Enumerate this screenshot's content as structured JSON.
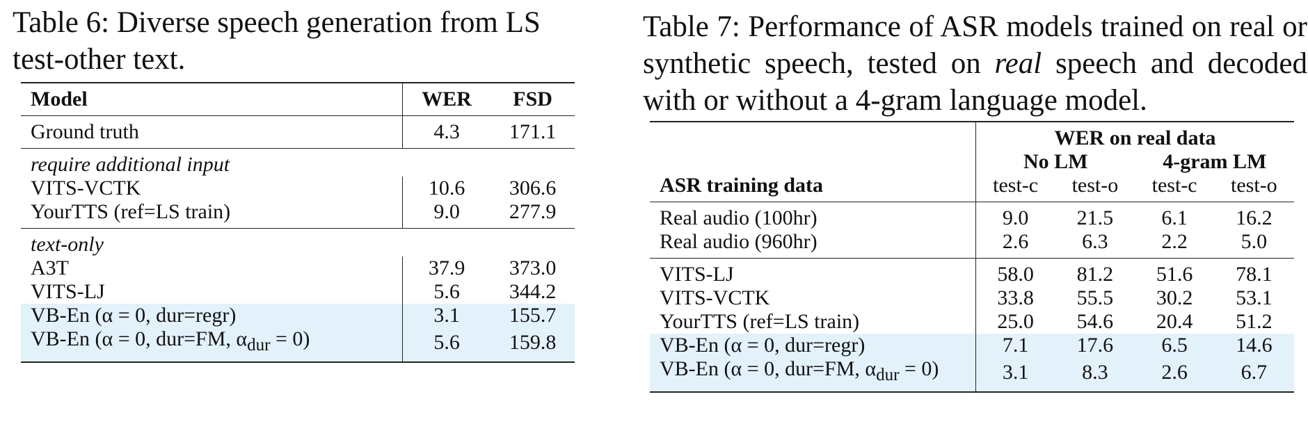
{
  "table6": {
    "caption": [
      "Table 6: Diverse speech generation from LS test-other text."
    ],
    "columns": [
      "Model",
      "WER",
      "FSD"
    ],
    "groups": [
      {
        "rows": [
          {
            "label": [
              "Ground truth"
            ],
            "values": [
              "4.3",
              "171.1"
            ]
          }
        ]
      },
      {
        "title": "require additional input",
        "rows": [
          {
            "label": [
              "VITS-VCTK"
            ],
            "values": [
              "10.6",
              "306.6"
            ]
          },
          {
            "label": [
              "YourTTS (ref=LS train)"
            ],
            "values": [
              "9.0",
              "277.9"
            ]
          }
        ]
      },
      {
        "title": "text-only",
        "rows": [
          {
            "label": [
              "A3T"
            ],
            "values": [
              "37.9",
              "373.0"
            ]
          },
          {
            "label": [
              "VITS-LJ"
            ],
            "values": [
              "5.6",
              "344.2"
            ]
          },
          {
            "label": [
              "VB-En (α = 0, dur=regr)"
            ],
            "values": [
              "3.1",
              "155.7"
            ],
            "highlighted": true
          },
          {
            "label": [
              "VB-En (α = 0, dur=FM, α",
              "dur",
              " = 0)"
            ],
            "values": [
              "5.6",
              "159.8"
            ],
            "highlighted": true
          }
        ]
      }
    ]
  },
  "table7": {
    "caption": [
      "Table 7: Performance of ASR models trained on real or synthetic speech, tested on ",
      "real",
      " speech and decoded with or without a 4-gram language model."
    ],
    "group_header": "WER on real data",
    "subgroups": [
      "No LM",
      "4-gram LM"
    ],
    "row_header": "ASR training data",
    "columns": [
      "test-c",
      "test-o",
      "test-c",
      "test-o"
    ],
    "groups": [
      {
        "rows": [
          {
            "label": [
              "Real audio (100hr)"
            ],
            "values": [
              "9.0",
              "21.5",
              "6.1",
              "16.2"
            ]
          },
          {
            "label": [
              "Real audio (960hr)"
            ],
            "values": [
              "2.6",
              "6.3",
              "2.2",
              "5.0"
            ]
          }
        ]
      },
      {
        "rows": [
          {
            "label": [
              "VITS-LJ"
            ],
            "values": [
              "58.0",
              "81.2",
              "51.6",
              "78.1"
            ]
          },
          {
            "label": [
              "VITS-VCTK"
            ],
            "values": [
              "33.8",
              "55.5",
              "30.2",
              "53.1"
            ]
          },
          {
            "label": [
              "YourTTS (ref=LS train)"
            ],
            "values": [
              "25.0",
              "54.6",
              "20.4",
              "51.2"
            ]
          },
          {
            "label": [
              "VB-En (α = 0, dur=regr)"
            ],
            "values": [
              "7.1",
              "17.6",
              "6.5",
              "14.6"
            ],
            "highlighted": true
          },
          {
            "label": [
              "VB-En (α = 0, dur=FM, α",
              "dur",
              " = 0)"
            ],
            "values": [
              "3.1",
              "8.3",
              "2.6",
              "6.7"
            ],
            "highlighted": true
          }
        ]
      }
    ]
  }
}
